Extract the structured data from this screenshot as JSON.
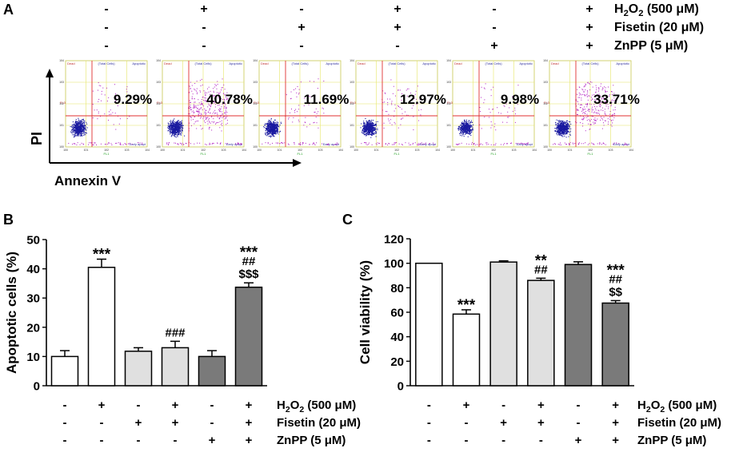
{
  "panel_labels": {
    "a": "A",
    "b": "B",
    "c": "C"
  },
  "treatments": [
    {
      "name_prefix": "H",
      "name_sub": "2",
      "name_mid": "O",
      "name_sub2": "2",
      "name_suffix": " (500 μM)",
      "signs": [
        "-",
        "+",
        "-",
        "+",
        "-",
        "+"
      ]
    },
    {
      "name_prefix": "Fisetin (20 μM)",
      "signs": [
        "-",
        "-",
        "+",
        "+",
        "-",
        "+"
      ]
    },
    {
      "name_prefix": "ZnPP (5 μM)",
      "signs": [
        "-",
        "-",
        "-",
        "-",
        "+",
        "+"
      ]
    }
  ],
  "flow": {
    "y_axis_label": "PI",
    "x_axis_label": "Annexin V",
    "percentages": [
      "9.29%",
      "40.78%",
      "11.69%",
      "12.97%",
      "9.98%",
      "33.71%"
    ],
    "plot_header": "(Total Cells)",
    "quadrant_labels": {
      "ul": "Dead",
      "ur": "Apoptotic",
      "lr": "Early apopt"
    },
    "axis_labels": {
      "y": "FL3",
      "x": "FL1"
    },
    "ticks": {
      "x": [
        "100",
        "101",
        "102",
        "103",
        "104"
      ],
      "y": [
        "100",
        "101",
        "102",
        "103",
        "104"
      ]
    },
    "dot_density": [
      1.0,
      1.0,
      1.0,
      1.0,
      0.8,
      1.0
    ],
    "apoptotic_density": [
      0.15,
      1.0,
      0.2,
      0.25,
      0.15,
      0.85
    ]
  },
  "chart_data": [
    {
      "type": "bar",
      "panel": "B",
      "ylabel": "Apoptotic cells (%)",
      "ylim": [
        0,
        50
      ],
      "yticks": [
        "0",
        "10",
        "20",
        "30",
        "40",
        "50"
      ],
      "categories": [
        "Control",
        "H2O2",
        "Fisetin",
        "H2O2+Fisetin",
        "ZnPP",
        "H2O2+Fisetin+ZnPP"
      ],
      "values": [
        10.0,
        40.5,
        11.8,
        13.0,
        10.0,
        33.7
      ],
      "errors": [
        2.0,
        2.8,
        1.2,
        2.2,
        2.0,
        1.5
      ],
      "fills": [
        "#ffffff",
        "#ffffff",
        "#e0e0e0",
        "#e0e0e0",
        "#7a7a7a",
        "#7a7a7a"
      ],
      "annotations": [
        [],
        [
          "***"
        ],
        [],
        [
          "###"
        ],
        [],
        [
          "***",
          "##",
          "$$$"
        ]
      ]
    },
    {
      "type": "bar",
      "panel": "C",
      "ylabel": "Cell viability (%)",
      "ylim": [
        0,
        120
      ],
      "yticks": [
        "0",
        "20",
        "40",
        "60",
        "80",
        "100",
        "120"
      ],
      "categories": [
        "Control",
        "H2O2",
        "Fisetin",
        "H2O2+Fisetin",
        "ZnPP",
        "H2O2+Fisetin+ZnPP"
      ],
      "values": [
        100.0,
        58.5,
        101.0,
        86.0,
        99.0,
        67.5
      ],
      "errors": [
        0.0,
        3.5,
        1.0,
        1.8,
        2.2,
        2.0
      ],
      "fills": [
        "#ffffff",
        "#ffffff",
        "#e0e0e0",
        "#e0e0e0",
        "#7a7a7a",
        "#7a7a7a"
      ],
      "annotations": [
        [],
        [
          "***"
        ],
        [],
        [
          "**",
          "##"
        ],
        [],
        [
          "***",
          "##",
          "$$"
        ]
      ]
    }
  ],
  "colors": {
    "quadrant_line": "#e03030",
    "grid_line": "#e6e666",
    "dots_low": "#1a1aa0",
    "dots_high": "#b020c0"
  }
}
